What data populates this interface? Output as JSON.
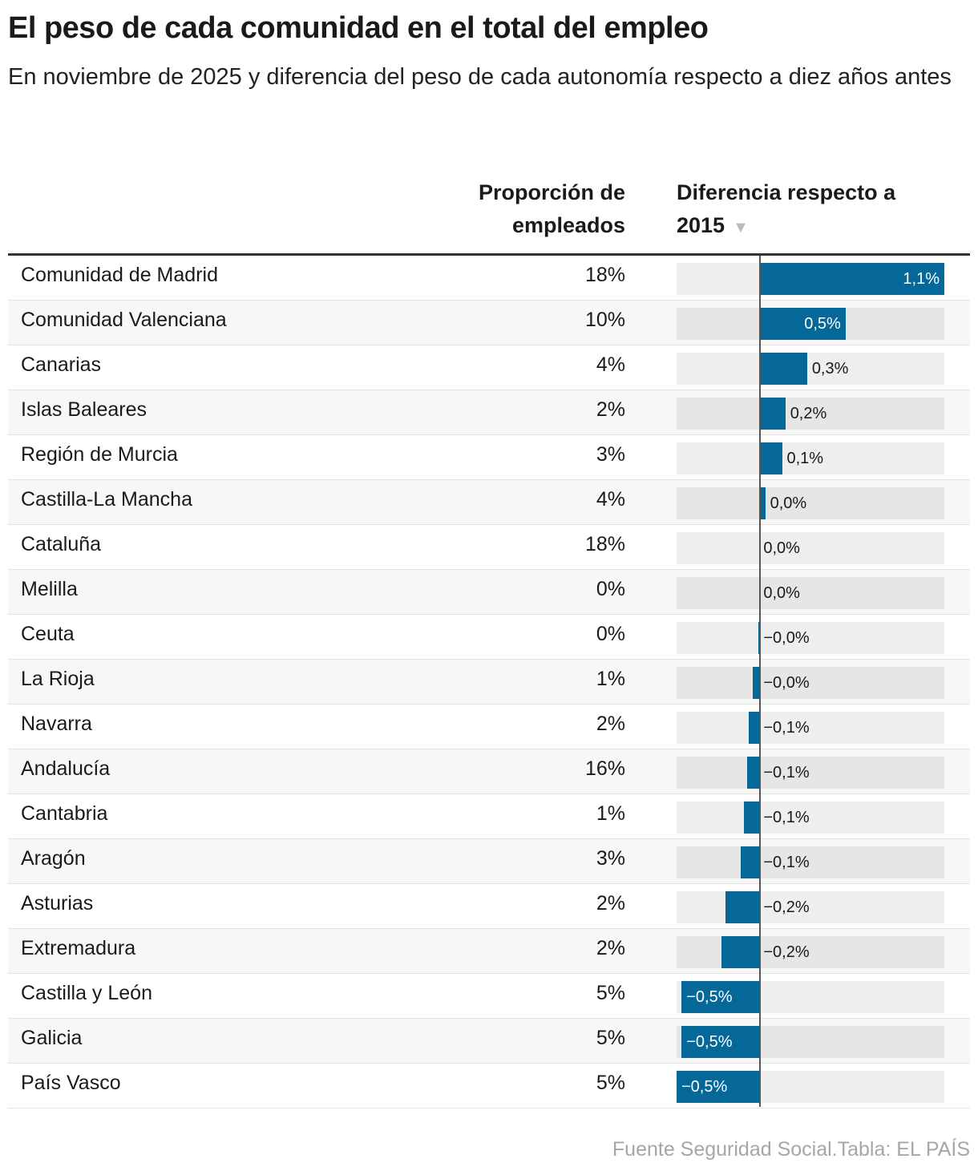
{
  "title": "El peso de cada comunidad en el total del empleo",
  "subtitle": "En noviembre de 2025 y diferencia del peso de cada autonomía respecto a diez años antes",
  "columns": {
    "proportion": "Proporción de empleados",
    "difference": "Diferencia respecto a 2015",
    "sort_icon": "triangle-down"
  },
  "source": "Fuente Seguridad Social.Tabla: EL PAÍS",
  "colors": {
    "bar": "#066899"
  },
  "chart_data": {
    "type": "table",
    "xlim": [
      -0.5,
      1.1
    ],
    "rows": [
      {
        "name": "Comunidad de Madrid",
        "proportion": "18%",
        "diff": 1.1,
        "label": "1,1%"
      },
      {
        "name": "Comunidad Valenciana",
        "proportion": "10%",
        "diff": 0.51,
        "label": "0,5%"
      },
      {
        "name": "Canarias",
        "proportion": "4%",
        "diff": 0.28,
        "label": "0,3%"
      },
      {
        "name": "Islas Baleares",
        "proportion": "2%",
        "diff": 0.15,
        "label": "0,2%"
      },
      {
        "name": "Región de Murcia",
        "proportion": "3%",
        "diff": 0.13,
        "label": "0,1%"
      },
      {
        "name": "Castilla-La Mancha",
        "proportion": "4%",
        "diff": 0.03,
        "label": "0,0%"
      },
      {
        "name": "Cataluña",
        "proportion": "18%",
        "diff": 0.0,
        "label": "0,0%"
      },
      {
        "name": "Melilla",
        "proportion": "0%",
        "diff": 0.0,
        "label": "0,0%"
      },
      {
        "name": "Ceuta",
        "proportion": "0%",
        "diff": -0.01,
        "label": "−0,0%"
      },
      {
        "name": "La Rioja",
        "proportion": "1%",
        "diff": -0.045,
        "label": "−0,0%"
      },
      {
        "name": "Navarra",
        "proportion": "2%",
        "diff": -0.067,
        "label": "−0,1%"
      },
      {
        "name": "Andalucía",
        "proportion": "16%",
        "diff": -0.077,
        "label": "−0,1%"
      },
      {
        "name": "Cantabria",
        "proportion": "1%",
        "diff": -0.096,
        "label": "−0,1%"
      },
      {
        "name": "Aragón",
        "proportion": "3%",
        "diff": -0.115,
        "label": "−0,1%"
      },
      {
        "name": "Asturias",
        "proportion": "2%",
        "diff": -0.21,
        "label": "−0,2%"
      },
      {
        "name": "Extremadura",
        "proportion": "2%",
        "diff": -0.23,
        "label": "−0,2%"
      },
      {
        "name": "Castilla y León",
        "proportion": "5%",
        "diff": -0.47,
        "label": "−0,5%"
      },
      {
        "name": "Galicia",
        "proportion": "5%",
        "diff": -0.47,
        "label": "−0,5%"
      },
      {
        "name": "País Vasco",
        "proportion": "5%",
        "diff": -0.5,
        "label": "−0,5%"
      }
    ]
  }
}
